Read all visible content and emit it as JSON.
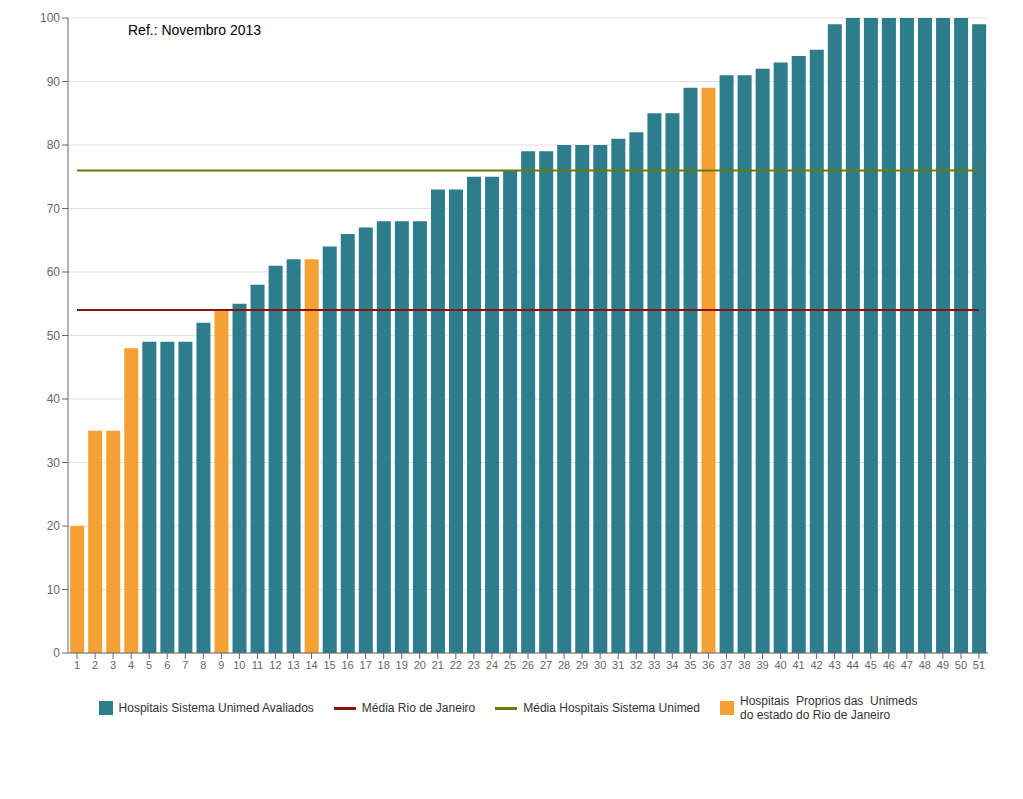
{
  "chart_data": {
    "type": "bar",
    "annotations": [
      "Ref.: Novembro 2013"
    ],
    "categories": [
      "1",
      "2",
      "3",
      "4",
      "5",
      "6",
      "7",
      "8",
      "9",
      "10",
      "11",
      "12",
      "13",
      "14",
      "15",
      "16",
      "17",
      "18",
      "19",
      "20",
      "21",
      "22",
      "23",
      "24",
      "25",
      "26",
      "27",
      "28",
      "29",
      "30",
      "31",
      "32",
      "33",
      "34",
      "35",
      "36",
      "37",
      "38",
      "39",
      "40",
      "41",
      "42",
      "43",
      "44",
      "45",
      "46",
      "47",
      "48",
      "49",
      "50",
      "51"
    ],
    "series": [
      {
        "name": "Hospitais Sistema Unimed Avaliados",
        "type": "bar",
        "color": "#2e7d8c",
        "values": [
          null,
          null,
          null,
          null,
          49,
          49,
          49,
          52,
          null,
          55,
          58,
          61,
          62,
          null,
          64,
          66,
          67,
          68,
          68,
          68,
          73,
          73,
          75,
          75,
          76,
          79,
          79,
          80,
          80,
          80,
          81,
          82,
          85,
          85,
          89,
          null,
          91,
          91,
          92,
          93,
          94,
          95,
          99,
          100,
          100,
          100,
          100,
          100,
          100,
          100,
          99
        ]
      },
      {
        "name": "Média Rio de Janeiro",
        "type": "line",
        "color": "#8b1010",
        "values": [
          54,
          54,
          54,
          54,
          54,
          54,
          54,
          54,
          54,
          54,
          54,
          54,
          54,
          54,
          54,
          54,
          54,
          54,
          54,
          54,
          54,
          54,
          54,
          54,
          54,
          54,
          54,
          54,
          54,
          54,
          54,
          54,
          54,
          54,
          54,
          54,
          54,
          54,
          54,
          54,
          54,
          54,
          54,
          54,
          54,
          54,
          54,
          54,
          54,
          54,
          54
        ]
      },
      {
        "name": "Média Hospitais Sistema Unimed",
        "type": "line",
        "color": "#6b7c00",
        "values": [
          76,
          76,
          76,
          76,
          76,
          76,
          76,
          76,
          76,
          76,
          76,
          76,
          76,
          76,
          76,
          76,
          76,
          76,
          76,
          76,
          76,
          76,
          76,
          76,
          76,
          76,
          76,
          76,
          76,
          76,
          76,
          76,
          76,
          76,
          76,
          76,
          76,
          76,
          76,
          76,
          76,
          76,
          76,
          76,
          76,
          76,
          76,
          76,
          76,
          76,
          76
        ]
      },
      {
        "name": "Hospitais  Proprios das  Unimeds\ndo estado do Rio de Janeiro",
        "type": "bar",
        "color": "#f5a033",
        "values": [
          20,
          35,
          35,
          48,
          null,
          null,
          null,
          null,
          54,
          null,
          null,
          null,
          null,
          62,
          null,
          null,
          null,
          null,
          null,
          null,
          null,
          null,
          null,
          null,
          null,
          null,
          null,
          null,
          null,
          null,
          null,
          null,
          null,
          null,
          null,
          89,
          null,
          null,
          null,
          null,
          null,
          null,
          null,
          null,
          null,
          null,
          null,
          null,
          null,
          null,
          null
        ]
      }
    ],
    "ylim": [
      0,
      100
    ],
    "yticks": [
      0,
      10,
      20,
      30,
      40,
      50,
      60,
      70,
      80,
      90,
      100
    ],
    "grid": true
  }
}
